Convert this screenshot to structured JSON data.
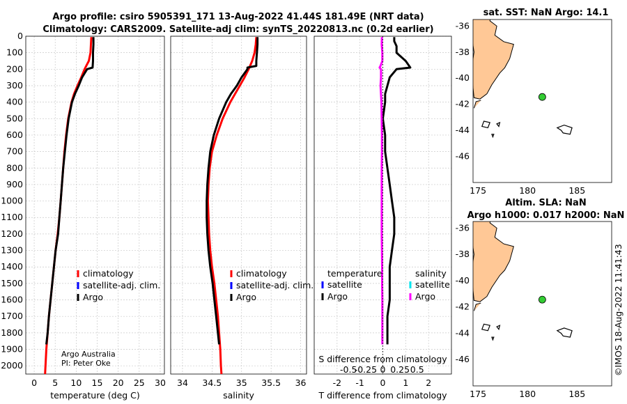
{
  "title_line1": "Argo profile: csiro 5905391_171 13-Aug-2022 41.44S 181.49E (NRT data)",
  "title_line2": "Climatology: CARS2009. Satellite-adj clim: synTS_20220813.nc (0.2d earlier)",
  "watermark": "©IMOS 18-Aug-2022 11:41:43",
  "credit_line1": "Argo Australia",
  "credit_line2": "PI: Peter Oke",
  "colors": {
    "climatology": "#ff0000",
    "satellite": "#0000ff",
    "argo": "#000000",
    "sal_sat": "#00e5ee",
    "sal_argo": "#ff00ff",
    "land": "#ffc896",
    "marker": "#33cc33"
  },
  "chart_data": [
    {
      "id": "temperature",
      "type": "line",
      "xlabel": "temperature (deg C)",
      "ylabel": "",
      "xlim": [
        -2,
        31
      ],
      "ylim": [
        0,
        2050
      ],
      "xticks": [
        0,
        5,
        10,
        15,
        20,
        25,
        30
      ],
      "yticks": [
        0,
        100,
        200,
        300,
        400,
        500,
        600,
        700,
        800,
        900,
        1000,
        1100,
        1200,
        1300,
        1400,
        1500,
        1600,
        1700,
        1800,
        1900,
        2000
      ],
      "legend": [
        "climatology",
        "satellite-adj. clim.",
        "Argo"
      ],
      "series": [
        {
          "name": "climatology",
          "depth": [
            5,
            50,
            100,
            150,
            175,
            200,
            250,
            300,
            350,
            400,
            500,
            600,
            700,
            800,
            900,
            1000,
            1100,
            1200,
            1300,
            1400,
            1500,
            1600,
            1700,
            1800,
            1900,
            2000,
            2050
          ],
          "values": [
            13.6,
            13.5,
            13.4,
            13.0,
            12.5,
            12.0,
            11.2,
            10.3,
            9.5,
            8.9,
            8.1,
            7.6,
            7.2,
            6.9,
            6.6,
            6.3,
            6.0,
            5.6,
            5.1,
            4.7,
            4.3,
            3.9,
            3.5,
            3.2,
            2.9,
            2.7,
            2.6
          ]
        },
        {
          "name": "Argo",
          "depth": [
            5,
            50,
            100,
            150,
            190,
            200,
            250,
            300,
            350,
            400,
            500,
            600,
            700,
            800,
            900,
            1000,
            1100,
            1200,
            1300,
            1400,
            1500,
            1600,
            1700,
            1800,
            1870
          ],
          "values": [
            14.1,
            14.1,
            14.0,
            14.0,
            13.9,
            12.6,
            11.4,
            10.6,
            9.7,
            9.0,
            8.2,
            7.7,
            7.3,
            6.9,
            6.6,
            6.3,
            6.0,
            5.7,
            5.1,
            4.7,
            4.3,
            3.9,
            3.5,
            3.2,
            2.9
          ]
        }
      ]
    },
    {
      "id": "salinity",
      "type": "line",
      "xlabel": "salinity",
      "ylabel": "",
      "xlim": [
        33.8,
        36.1
      ],
      "ylim": [
        0,
        2050
      ],
      "xticks": [
        34,
        34.5,
        35,
        35.5,
        36
      ],
      "xtick_labels": [
        "34",
        "34.5",
        "35",
        "35.5",
        "36"
      ],
      "legend": [
        "climatology",
        "satellite-adj. clim.",
        "Argo"
      ],
      "series": [
        {
          "name": "climatology",
          "depth": [
            5,
            50,
            100,
            150,
            200,
            250,
            300,
            350,
            400,
            500,
            600,
            700,
            800,
            900,
            1000,
            1100,
            1200,
            1300,
            1400,
            1500,
            1600,
            1700,
            1800,
            1900,
            2000,
            2050
          ],
          "values": [
            35.25,
            35.24,
            35.22,
            35.18,
            35.12,
            35.05,
            34.97,
            34.89,
            34.81,
            34.68,
            34.58,
            34.5,
            34.46,
            34.44,
            34.43,
            34.44,
            34.45,
            34.47,
            34.5,
            34.54,
            34.57,
            34.6,
            34.62,
            34.64,
            34.65,
            34.66
          ]
        },
        {
          "name": "Argo",
          "depth": [
            5,
            50,
            100,
            150,
            180,
            190,
            200,
            250,
            300,
            350,
            400,
            500,
            600,
            700,
            800,
            900,
            1000,
            1100,
            1200,
            1300,
            1400,
            1500,
            1600,
            1700,
            1800,
            1870
          ],
          "values": [
            35.27,
            35.27,
            35.26,
            35.25,
            35.25,
            35.1,
            35.1,
            35.0,
            34.92,
            34.82,
            34.74,
            34.62,
            34.53,
            34.47,
            34.44,
            34.42,
            34.41,
            34.41,
            34.42,
            34.44,
            34.47,
            34.51,
            34.54,
            34.57,
            34.6,
            34.62
          ]
        }
      ]
    },
    {
      "id": "difference",
      "type": "line",
      "xlabel": "T difference from climatology",
      "xlabel_top": "S difference from climatology",
      "xlim": [
        -3,
        3
      ],
      "ylim": [
        0,
        2050
      ],
      "xticks": [
        -2,
        -1,
        0,
        1,
        2
      ],
      "sticks_labels": [
        "-0.5",
        "-0.25",
        "0",
        "0.25",
        "0.5"
      ],
      "legend_titles": [
        "temperature",
        "salinity"
      ],
      "legend_left": [
        "satellite",
        "Argo"
      ],
      "legend_right": [
        "satellite",
        "Argo"
      ],
      "series": [
        {
          "name": "temperature Argo",
          "depth": [
            5,
            30,
            60,
            100,
            150,
            170,
            190,
            200,
            250,
            300,
            350,
            400,
            500,
            600,
            700,
            800,
            900,
            1000,
            1100,
            1200,
            1300,
            1400,
            1500,
            1600,
            1700,
            1800,
            1870
          ],
          "values": [
            0.5,
            0.5,
            0.6,
            0.6,
            1.0,
            1.1,
            1.2,
            0.6,
            0.3,
            0.2,
            0.1,
            0.1,
            0.0,
            0.1,
            0.1,
            0.2,
            0.3,
            0.4,
            0.5,
            0.5,
            0.4,
            0.3,
            0.3,
            0.3,
            0.2,
            0.2,
            0.2
          ]
        },
        {
          "name": "salinity Argo",
          "depth": [
            5,
            50,
            100,
            150,
            180,
            190,
            200,
            250,
            300,
            400,
            500,
            600,
            700,
            800,
            900,
            1000,
            1100,
            1200,
            1300,
            1400,
            1500,
            1600,
            1700,
            1800,
            1870
          ],
          "values": [
            -0.04,
            -0.05,
            -0.02,
            -0.02,
            -0.1,
            -0.14,
            -0.08,
            -0.08,
            -0.1,
            -0.06,
            -0.05,
            -0.04,
            -0.04,
            -0.05,
            -0.05,
            -0.05,
            -0.05,
            -0.05,
            -0.04,
            -0.03,
            -0.03,
            -0.02,
            -0.02,
            -0.02,
            -0.02
          ]
        }
      ]
    },
    {
      "id": "map_sst",
      "type": "scatter",
      "title": "sat. SST: NaN Argo: 14.1",
      "xlim": [
        174.5,
        188.5
      ],
      "ylim": [
        -48,
        -35.5
      ],
      "xticks": [
        175,
        180,
        185
      ],
      "yticks": [
        -36,
        -38,
        -40,
        -42,
        -44,
        -46
      ],
      "x": [
        181.49
      ],
      "y": [
        -41.44
      ]
    },
    {
      "id": "map_sla",
      "type": "scatter",
      "title": "Altim. SLA: NaN",
      "title2": "Argo h1000: 0.017 h2000: NaN",
      "xlim": [
        174.5,
        188.5
      ],
      "ylim": [
        -48,
        -35.5
      ],
      "xticks": [
        175,
        180,
        185
      ],
      "yticks": [
        -36,
        -38,
        -40,
        -42,
        -44,
        -46
      ],
      "x": [
        181.49
      ],
      "y": [
        -41.44
      ]
    }
  ]
}
